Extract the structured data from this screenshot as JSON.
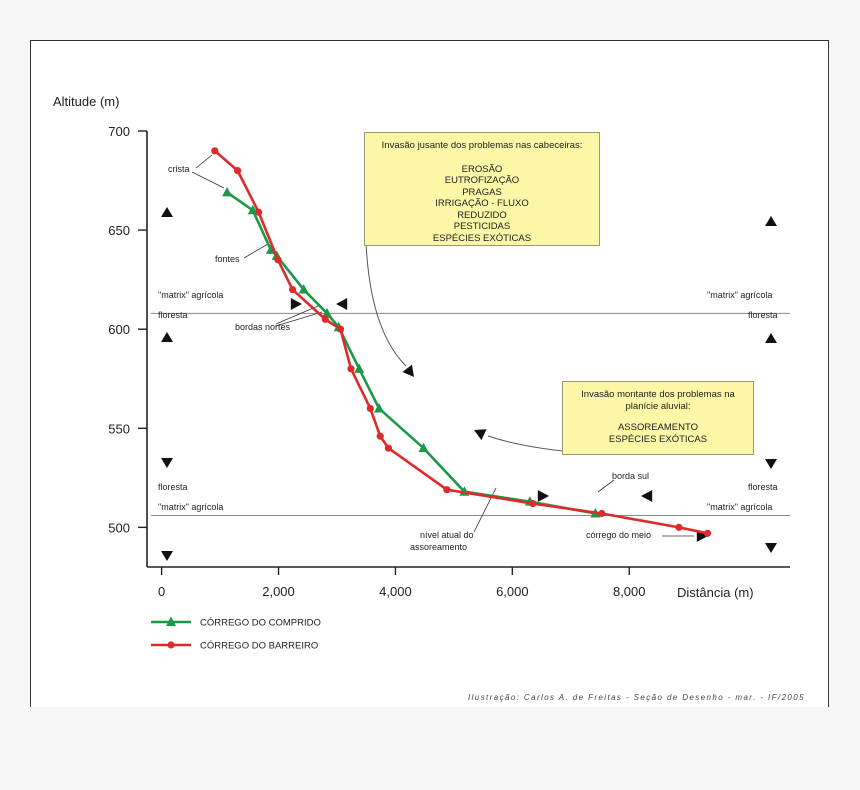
{
  "chart_data": {
    "type": "line",
    "ylabel": "Altitude (m)",
    "xlabel": "Distância (m)",
    "xlim": [
      -250,
      10750
    ],
    "ylim": [
      480,
      700
    ],
    "xticks": [
      0,
      2000,
      4000,
      6000,
      8000
    ],
    "xtick_labels": [
      "0",
      "2,000",
      "4,000",
      "6,000",
      "8,000"
    ],
    "yticks": [
      500,
      550,
      600,
      650,
      700
    ],
    "ytick_labels": [
      "500",
      "550",
      "600",
      "650",
      "700"
    ],
    "grid": false,
    "legend_position": "bottom-left",
    "series": [
      {
        "name": "CÓRREGO DO COMPRIDO",
        "color": "#1a9a48",
        "marker": "triangle",
        "x": [
          1120,
          1560,
          1870,
          1970,
          2430,
          2830,
          3030,
          3380,
          3720,
          4480,
          5180,
          6300,
          7420
        ],
        "y": [
          669,
          660,
          640,
          637,
          620,
          608,
          601,
          580,
          560,
          540,
          518,
          513,
          507
        ]
      },
      {
        "name": "CÓRREGO DO BARREIRO",
        "color": "#de2a2a",
        "marker": "circle",
        "x": [
          910,
          1300,
          1660,
          1990,
          2240,
          2800,
          3060,
          3240,
          3570,
          3740,
          3880,
          4880,
          6350,
          7530,
          8850,
          9340
        ],
        "y": [
          690,
          680,
          659,
          635,
          620,
          605,
          600,
          580,
          560,
          546,
          540,
          519,
          512,
          507,
          500,
          497
        ]
      }
    ],
    "reference_lines": [
      {
        "y": 608,
        "left_above": "\"matrix\" agrícola",
        "left_below": "floresta",
        "right_above": "\"matrix\" agrícola",
        "right_below": "floresta"
      },
      {
        "y": 506,
        "left_above": "floresta",
        "left_below": "\"matrix\" agrícola",
        "right_above": "floresta",
        "right_below": "\"matrix\" agrícola"
      }
    ],
    "annotations": {
      "crista": "crista",
      "fontes": "fontes",
      "bordas_nortes": "bordas nortes",
      "borda_sul": "borda sul",
      "nivel_line1": "nível atual do",
      "nivel_line2": "assoreamento",
      "corrego_meio": "córrego do meio"
    },
    "box_upstream": {
      "heading": "Invasão jusante dos problemas nas cabeceiras:",
      "items": [
        "EROSÃO",
        "EUTROFIZAÇÃO",
        "PRAGAS",
        "IRRIGAÇÃO - FLUXO",
        "REDUZIDO",
        "PESTICIDAS",
        "ESPÉCIES EXÓTICAS"
      ]
    },
    "box_downstream": {
      "heading_line1": "Invasão montante dos problemas na",
      "heading_line2": "planície aluvial:",
      "items": [
        "ASSOREAMENTO",
        "ESPÉCIES EXÓTICAS"
      ]
    },
    "credit": "Ilustração: Carlos A. de Freitas - Seção de Desenho - mar. -  IF/2005"
  }
}
